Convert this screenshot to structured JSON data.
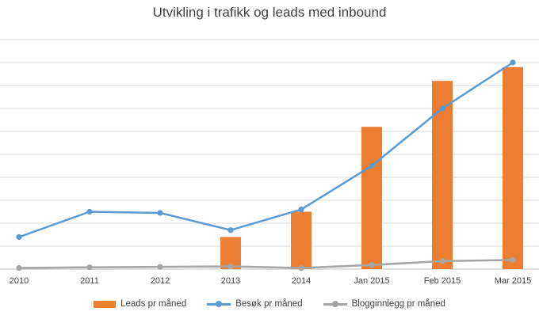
{
  "chart_data": {
    "type": "bar",
    "title": "Utvikling i trafikk og leads med inbound",
    "categories": [
      "2010",
      "2011",
      "2012",
      "2013",
      "2014",
      "Jan 2015",
      "Feb 2015",
      "Mar 2015"
    ],
    "ylim": [
      0,
      100
    ],
    "grid": true,
    "legend_position": "bottom",
    "series": [
      {
        "name": "Leads pr måned",
        "kind": "bar",
        "color": "#ED7D31",
        "values": [
          null,
          null,
          null,
          14,
          25,
          62,
          82,
          88
        ]
      },
      {
        "name": "Besøk pr måned",
        "kind": "line",
        "color": "#5B9BD5",
        "values": [
          14,
          25,
          24.5,
          17,
          26,
          45,
          70,
          90
        ]
      },
      {
        "name": "Blogginnlegg pr måned",
        "kind": "line",
        "color": "#A5A5A5",
        "values": [
          0.5,
          0.8,
          1,
          1.2,
          0.5,
          1.8,
          3.5,
          4
        ]
      }
    ]
  }
}
